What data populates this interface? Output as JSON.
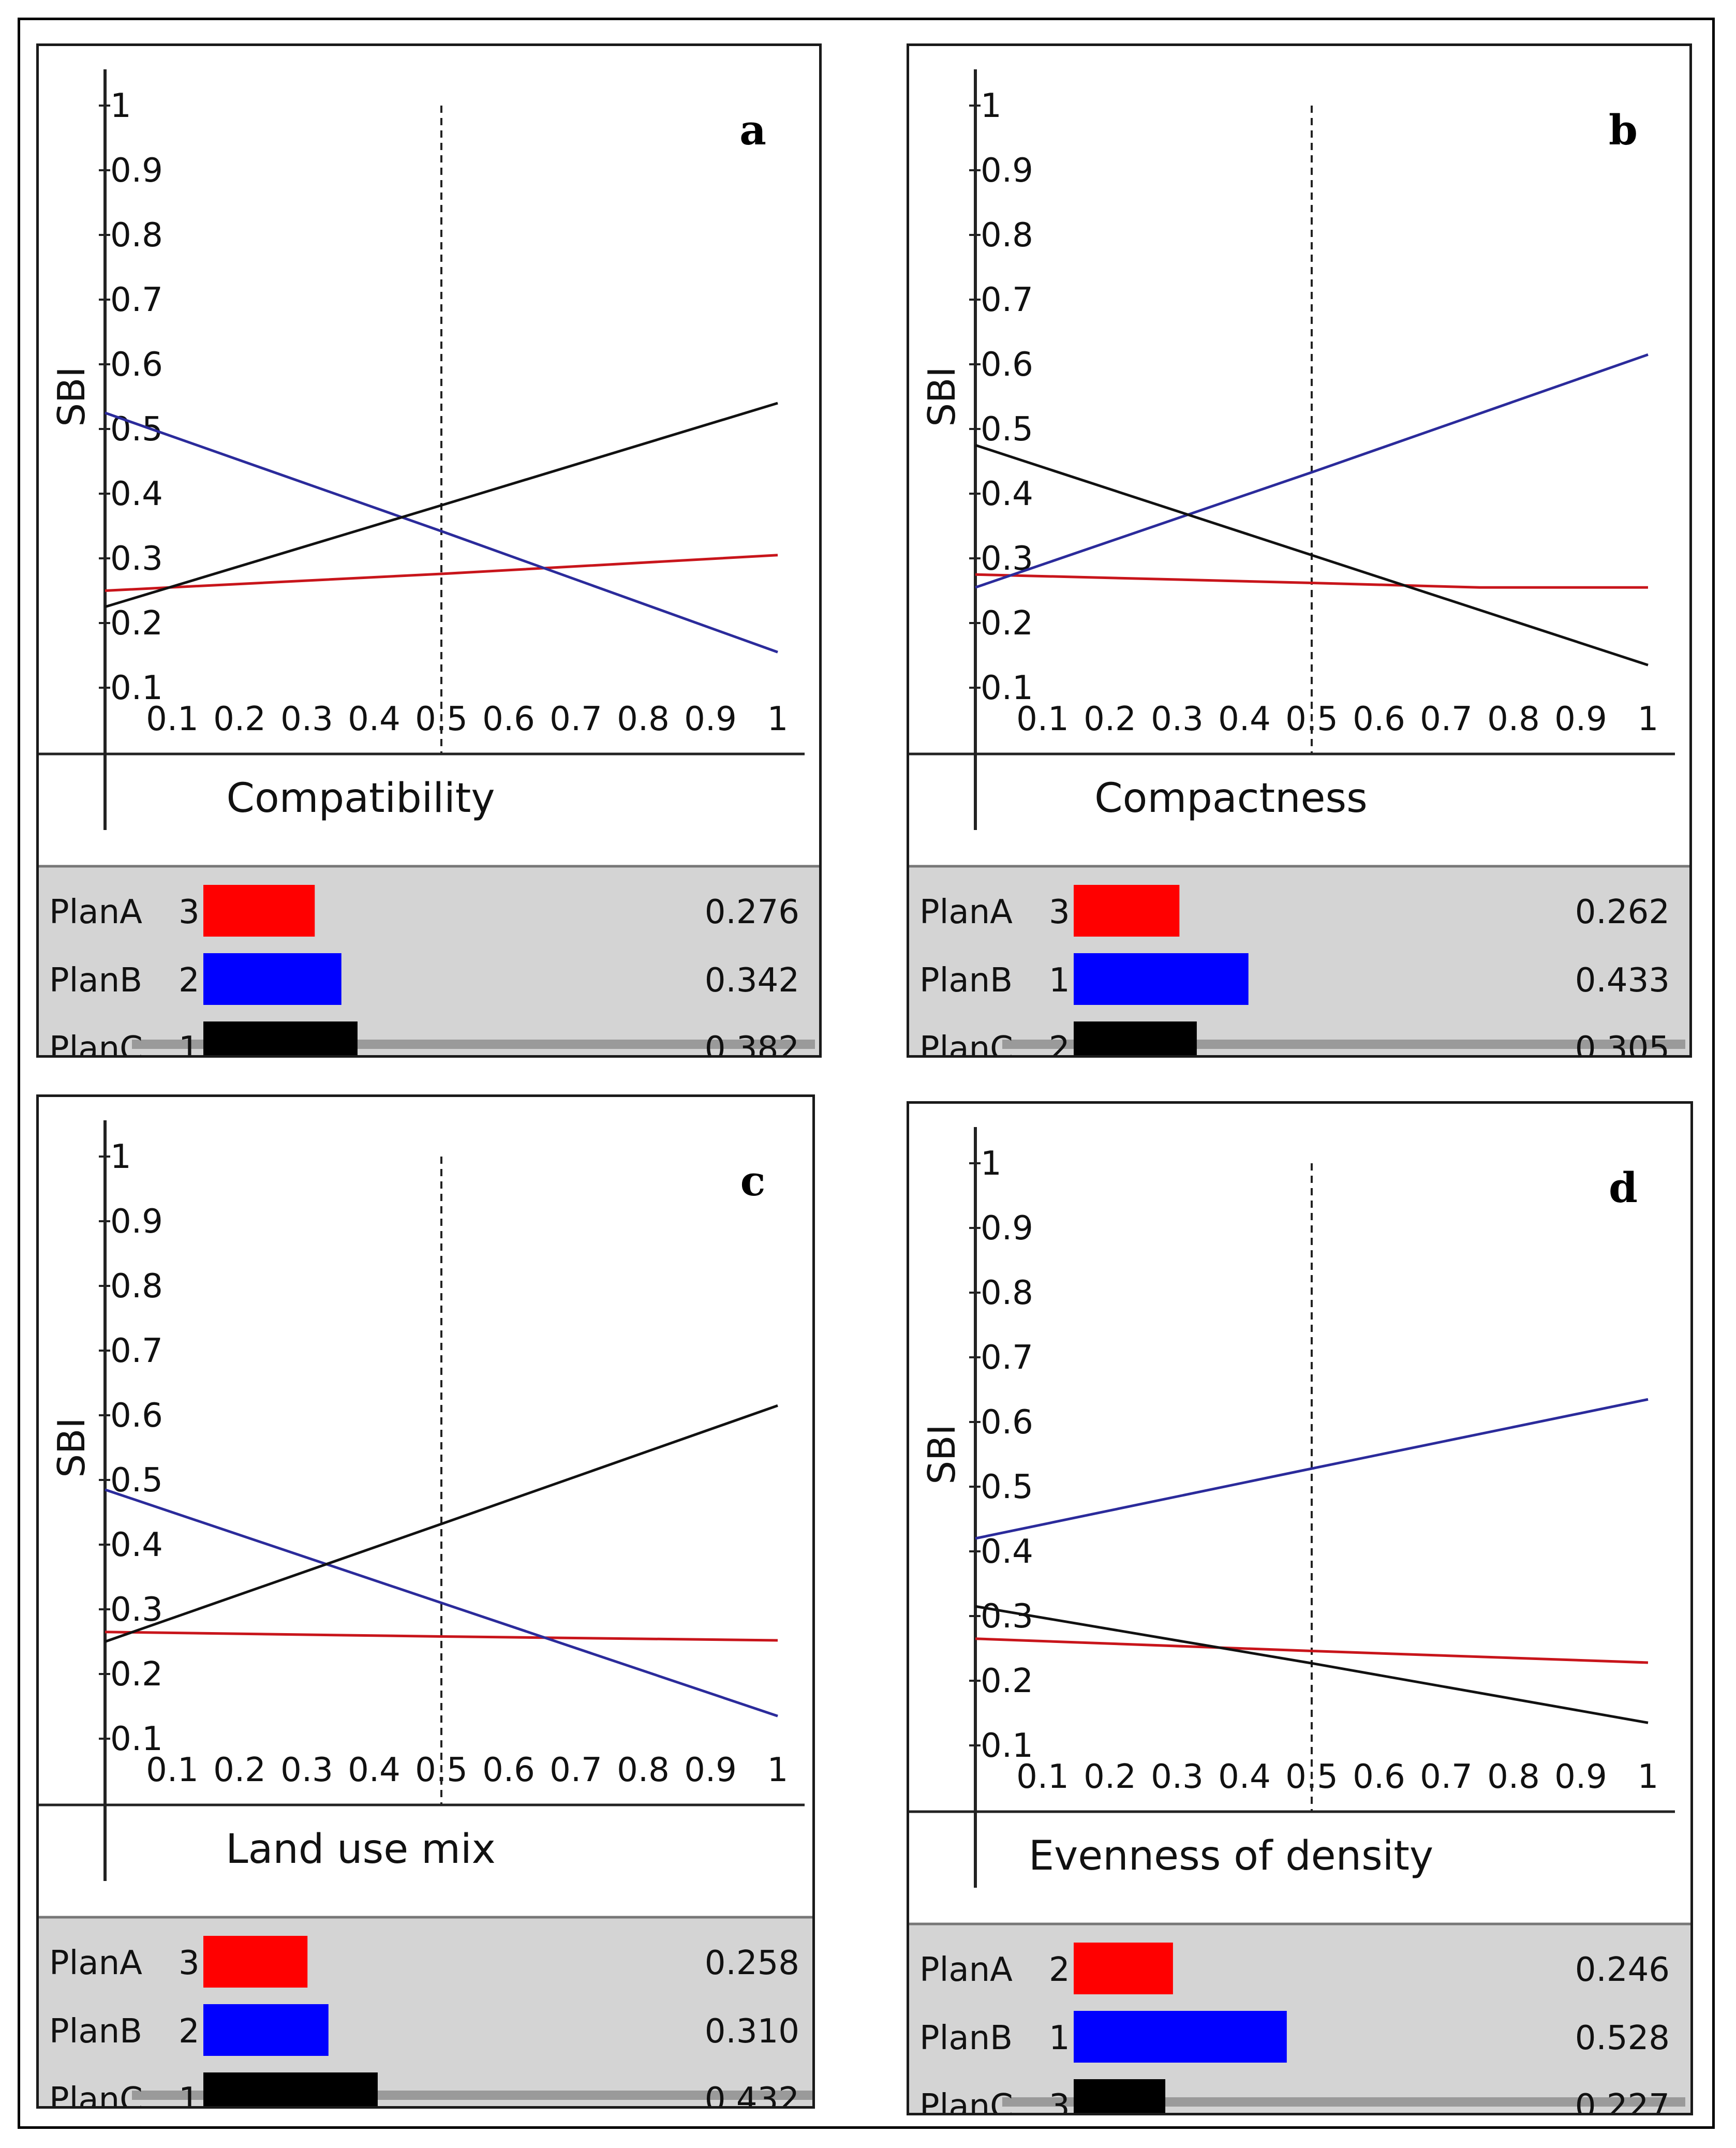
{
  "chart_data": [
    {
      "type": "line",
      "panel_label": "a",
      "xlabel": "Compatibility",
      "ylabel": "SBI",
      "xlim": [
        0,
        1
      ],
      "ylim": [
        0,
        1
      ],
      "x_ticks": [
        "0.1",
        "0.2",
        "0.3",
        "0.4",
        "0.5",
        "0.6",
        "0.7",
        "0.8",
        "0.9",
        "1"
      ],
      "y_ticks": [
        "0.1",
        "0.2",
        "0.3",
        "0.4",
        "0.5",
        "0.6",
        "0.7",
        "0.8",
        "0.9",
        "1"
      ],
      "reference_x": 0.5,
      "series": [
        {
          "key": "A",
          "color": "#c8151b",
          "x": [
            0,
            0.5,
            1
          ],
          "y": [
            0.25,
            0.276,
            0.305
          ]
        },
        {
          "key": "B",
          "color": "#2b2b9b",
          "x": [
            0,
            0.5,
            1
          ],
          "y": [
            0.525,
            0.342,
            0.155
          ]
        },
        {
          "key": "C",
          "color": "#111111",
          "x": [
            0,
            0.5,
            1
          ],
          "y": [
            0.225,
            0.382,
            0.54
          ]
        }
      ],
      "results": [
        {
          "plan": "PlanA",
          "rank": "3",
          "value": "0.276",
          "v": 0.276,
          "color": "#ff0000"
        },
        {
          "plan": "PlanB",
          "rank": "2",
          "value": "0.342",
          "v": 0.342,
          "color": "#0000ff"
        },
        {
          "plan": "PlanC",
          "rank": "1",
          "value": "0.382",
          "v": 0.382,
          "color": "#000000"
        }
      ]
    },
    {
      "type": "line",
      "panel_label": "b",
      "xlabel": "Compactness",
      "ylabel": "SBI",
      "xlim": [
        0,
        1
      ],
      "ylim": [
        0,
        1
      ],
      "x_ticks": [
        "0.1",
        "0.2",
        "0.3",
        "0.4",
        "0.5",
        "0.6",
        "0.7",
        "0.8",
        "0.9",
        "1"
      ],
      "y_ticks": [
        "0.1",
        "0.2",
        "0.3",
        "0.4",
        "0.5",
        "0.6",
        "0.7",
        "0.8",
        "0.9",
        "1"
      ],
      "reference_x": 0.5,
      "series": [
        {
          "key": "A",
          "color": "#c8151b",
          "x": [
            0,
            0.5,
            0.75,
            1
          ],
          "y": [
            0.275,
            0.262,
            0.255,
            0.255
          ]
        },
        {
          "key": "B",
          "color": "#2b2b9b",
          "x": [
            0,
            0.5,
            1
          ],
          "y": [
            0.255,
            0.433,
            0.615
          ]
        },
        {
          "key": "C",
          "color": "#111111",
          "x": [
            0,
            0.5,
            1
          ],
          "y": [
            0.475,
            0.305,
            0.135
          ]
        }
      ],
      "results": [
        {
          "plan": "PlanA",
          "rank": "3",
          "value": "0.262",
          "v": 0.262,
          "color": "#ff0000"
        },
        {
          "plan": "PlanB",
          "rank": "1",
          "value": "0.433",
          "v": 0.433,
          "color": "#0000ff"
        },
        {
          "plan": "PlanC",
          "rank": "2",
          "value": "0.305",
          "v": 0.305,
          "color": "#000000"
        }
      ]
    },
    {
      "type": "line",
      "panel_label": "c",
      "xlabel": "Land use mix",
      "ylabel": "SBI",
      "xlim": [
        0,
        1
      ],
      "ylim": [
        0,
        1
      ],
      "x_ticks": [
        "0.1",
        "0.2",
        "0.3",
        "0.4",
        "0.5",
        "0.6",
        "0.7",
        "0.8",
        "0.9",
        "1"
      ],
      "y_ticks": [
        "0.1",
        "0.2",
        "0.3",
        "0.4",
        "0.5",
        "0.6",
        "0.7",
        "0.8",
        "0.9",
        "1"
      ],
      "reference_x": 0.5,
      "series": [
        {
          "key": "A",
          "color": "#c8151b",
          "x": [
            0,
            0.5,
            1
          ],
          "y": [
            0.265,
            0.258,
            0.252
          ]
        },
        {
          "key": "B",
          "color": "#2b2b9b",
          "x": [
            0,
            0.5,
            1
          ],
          "y": [
            0.485,
            0.31,
            0.135
          ]
        },
        {
          "key": "C",
          "color": "#111111",
          "x": [
            0,
            0.5,
            1
          ],
          "y": [
            0.25,
            0.432,
            0.615
          ]
        }
      ],
      "results": [
        {
          "plan": "PlanA",
          "rank": "3",
          "value": "0.258",
          "v": 0.258,
          "color": "#ff0000"
        },
        {
          "plan": "PlanB",
          "rank": "2",
          "value": "0.310",
          "v": 0.31,
          "color": "#0000ff"
        },
        {
          "plan": "PlanC",
          "rank": "1",
          "value": "0.432",
          "v": 0.432,
          "color": "#000000"
        }
      ]
    },
    {
      "type": "line",
      "panel_label": "d",
      "xlabel": "Evenness of density",
      "ylabel": "SBI",
      "xlim": [
        0,
        1
      ],
      "ylim": [
        0,
        1
      ],
      "x_ticks": [
        "0.1",
        "0.2",
        "0.3",
        "0.4",
        "0.5",
        "0.6",
        "0.7",
        "0.8",
        "0.9",
        "1"
      ],
      "y_ticks": [
        "0.1",
        "0.2",
        "0.3",
        "0.4",
        "0.5",
        "0.6",
        "0.7",
        "0.8",
        "0.9",
        "1"
      ],
      "reference_x": 0.5,
      "series": [
        {
          "key": "A",
          "color": "#c8151b",
          "x": [
            0,
            0.5,
            1
          ],
          "y": [
            0.265,
            0.246,
            0.228
          ]
        },
        {
          "key": "B",
          "color": "#2b2b9b",
          "x": [
            0,
            0.5,
            1
          ],
          "y": [
            0.42,
            0.528,
            0.635
          ]
        },
        {
          "key": "C",
          "color": "#111111",
          "x": [
            0,
            0.5,
            1
          ],
          "y": [
            0.315,
            0.227,
            0.135
          ]
        }
      ],
      "results": [
        {
          "plan": "PlanA",
          "rank": "2",
          "value": "0.246",
          "v": 0.246,
          "color": "#ff0000"
        },
        {
          "plan": "PlanB",
          "rank": "1",
          "value": "0.528",
          "v": 0.528,
          "color": "#0000ff"
        },
        {
          "plan": "PlanC",
          "rank": "3",
          "value": "0.227",
          "v": 0.227,
          "color": "#000000"
        }
      ]
    }
  ]
}
